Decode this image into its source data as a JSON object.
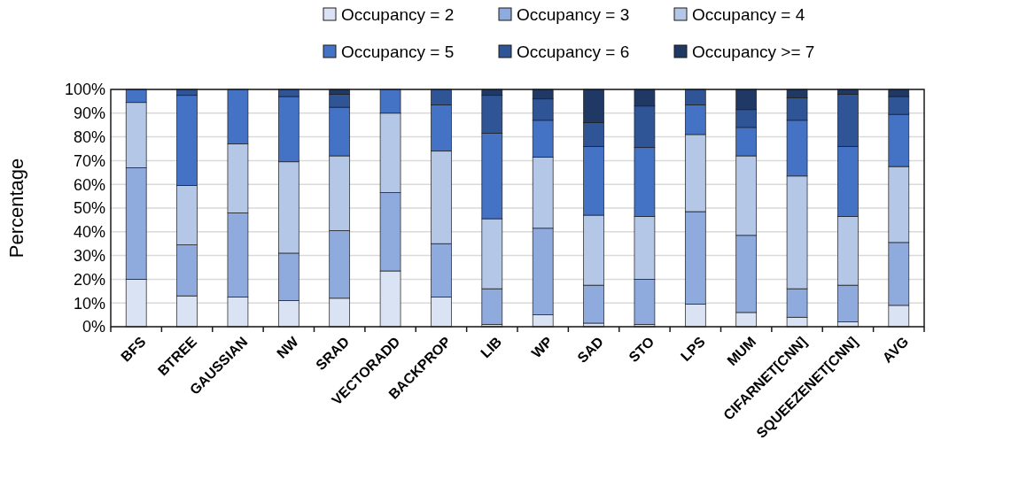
{
  "chart_data": {
    "type": "bar",
    "stacked": true,
    "ylabel": "Percentage",
    "categories": [
      "BFS",
      "BTREE",
      "GAUSSIAN",
      "NW",
      "SRAD",
      "VECTORADD",
      "BACKPROP",
      "LIB",
      "WP",
      "SAD",
      "STO",
      "LPS",
      "MUM",
      "CIFARNET[CNN]",
      "SQUEEZENET[CNN]",
      "AVG"
    ],
    "series": [
      {
        "name": "Occupancy = 2",
        "color": "#dae3f3",
        "values": [
          20,
          13,
          12.5,
          11,
          12,
          23.5,
          12.5,
          1,
          5,
          1.5,
          1,
          9.5,
          6,
          4,
          2,
          9
        ]
      },
      {
        "name": "Occupancy = 3",
        "color": "#8faadc",
        "values": [
          47,
          21.5,
          35.5,
          20,
          28.5,
          33,
          22.5,
          15,
          36.5,
          16,
          19,
          39,
          32.5,
          12,
          15.5,
          26.5
        ]
      },
      {
        "name": "Occupancy = 4",
        "color": "#b4c7e7",
        "values": [
          27.5,
          25,
          29,
          38.5,
          31.5,
          33.5,
          39,
          29.5,
          30,
          29.5,
          26.5,
          32.5,
          33.5,
          47.5,
          29,
          32
        ]
      },
      {
        "name": "Occupancy = 5",
        "color": "#4472c4",
        "values": [
          5.5,
          38,
          23,
          27.5,
          20.5,
          10,
          19.5,
          36,
          15.5,
          29,
          29,
          12.5,
          12,
          23.5,
          29.5,
          22
        ]
      },
      {
        "name": "Occupancy = 6",
        "color": "#2f5597",
        "values": [
          0,
          2.5,
          0,
          3,
          5.5,
          0,
          6.5,
          16,
          9,
          10,
          17.5,
          6.5,
          7.5,
          9.5,
          22,
          7.5
        ]
      },
      {
        "name": "Occupancy >= 7",
        "color": "#203864",
        "values": [
          0,
          0,
          0,
          0,
          2,
          0,
          0,
          2.5,
          4,
          14,
          7,
          0,
          8.5,
          3.5,
          2,
          3
        ]
      }
    ],
    "ylim": [
      0,
      100
    ],
    "yticks": [
      {
        "value": 0,
        "label": "0%"
      },
      {
        "value": 10,
        "label": "10%"
      },
      {
        "value": 20,
        "label": "20%"
      },
      {
        "value": 30,
        "label": "30%"
      },
      {
        "value": 40,
        "label": "40%"
      },
      {
        "value": 50,
        "label": "50%"
      },
      {
        "value": 60,
        "label": "60%"
      },
      {
        "value": 70,
        "label": "70%"
      },
      {
        "value": 80,
        "label": "80%"
      },
      {
        "value": 90,
        "label": "90%"
      },
      {
        "value": 100,
        "label": "100%"
      }
    ],
    "grid": "y",
    "legend": "top"
  }
}
